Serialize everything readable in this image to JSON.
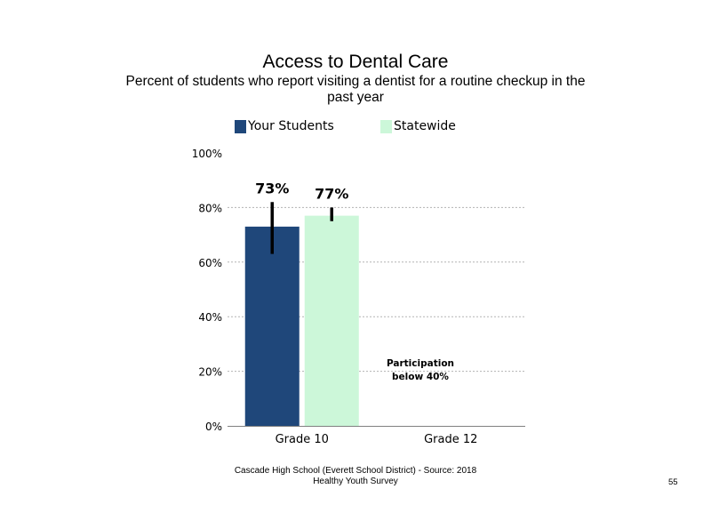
{
  "chart_data": {
    "type": "bar",
    "title": "Access to Dental Care",
    "subtitle": "Percent of students who report visiting a dentist for a routine checkup in the past year",
    "categories": [
      "Grade 10",
      "Grade 12"
    ],
    "series": [
      {
        "name": "Your Students",
        "color": "#1f477a",
        "values": [
          73,
          null
        ],
        "labels": [
          "73%",
          ""
        ],
        "error_low": [
          63,
          null
        ],
        "error_high": [
          82,
          null
        ]
      },
      {
        "name": "Statewide",
        "color": "#ccf7d9",
        "values": [
          77,
          null
        ],
        "labels": [
          "77%",
          ""
        ],
        "error_low": [
          75,
          null
        ],
        "error_high": [
          80,
          null
        ]
      }
    ],
    "ylim": [
      0,
      100
    ],
    "y_ticks": [
      0,
      20,
      40,
      60,
      80,
      100
    ],
    "y_tick_labels": [
      "0%",
      "20%",
      "40%",
      "60%",
      "80%",
      "100%"
    ],
    "grid": true,
    "legend_position": "top",
    "annotation": "Participation below 40%",
    "annotation_category": "Grade 12"
  },
  "footer": "Cascade High School (Everett School District) - Source: 2018 Healthy Youth Survey",
  "page_number": "55"
}
